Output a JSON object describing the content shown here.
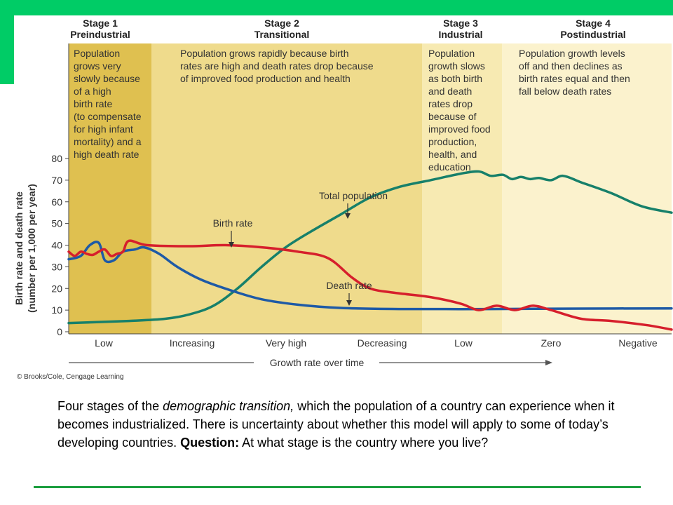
{
  "caption": {
    "part1": "Four stages of the ",
    "emphasis": "demographic transition,",
    "part2": " which the population of a country can experience when it becomes industrialized. There is uncertainty about whether this model will apply to some of today’s developing countries. ",
    "question_label": "Question:",
    "question_text": " At what stage is the country where you live?"
  },
  "copyright": "© Brooks/Cole, Cengage Learning",
  "chart_data": {
    "type": "line",
    "title": "",
    "ylabel_line1": "Birth rate and death rate",
    "ylabel_line2": "(number per 1,000 per year)",
    "xlabel": "Growth rate over time",
    "ylim": [
      0,
      80
    ],
    "yticks": [
      0,
      10,
      20,
      30,
      40,
      50,
      60,
      70,
      80
    ],
    "x_categories": [
      "Low",
      "Increasing",
      "Very high",
      "Decreasing",
      "Low",
      "Zero",
      "Negative"
    ],
    "stages": [
      {
        "name": "Stage 1",
        "subtitle": "Preindustrial",
        "color": "#dfc050",
        "description": [
          "Population",
          "grows very",
          "slowly because",
          "of a high",
          "birth rate",
          "(to compensate",
          "for high infant",
          "mortality) and a",
          "high death rate"
        ]
      },
      {
        "name": "Stage 2",
        "subtitle": "Transitional",
        "color": "#efdb8c",
        "description": [
          "Population grows rapidly because birth",
          "rates are high and death rates drop because",
          "of improved food production and health"
        ]
      },
      {
        "name": "Stage 3",
        "subtitle": "Industrial",
        "color": "#f7eab2",
        "description": [
          "Population",
          "growth slows",
          "as both birth",
          "and death",
          "rates drop",
          "because of",
          "improved food",
          "production,",
          "health, and",
          "education"
        ]
      },
      {
        "name": "Stage 4",
        "subtitle": "Postindustrial",
        "color": "#fbf2cd",
        "description": [
          "Population growth levels",
          "off and then declines as",
          "birth rates equal and then",
          "fall below death rates"
        ]
      }
    ],
    "annotations": [
      {
        "text": "Birth rate"
      },
      {
        "text": "Total population"
      },
      {
        "text": "Death rate"
      }
    ],
    "series": [
      {
        "name": "Birth rate",
        "color": "#d61f2c",
        "points": [
          [
            0,
            37
          ],
          [
            0.1,
            35
          ],
          [
            0.2,
            37
          ],
          [
            0.3,
            36
          ],
          [
            0.4,
            35.5
          ],
          [
            0.5,
            37
          ],
          [
            0.6,
            38
          ],
          [
            0.7,
            35
          ],
          [
            0.8,
            36
          ],
          [
            0.9,
            37
          ],
          [
            1,
            42
          ],
          [
            1.3,
            40
          ],
          [
            2,
            39.5
          ],
          [
            2.6,
            40
          ],
          [
            3.2,
            39
          ],
          [
            3.8,
            37
          ],
          [
            4.3,
            34
          ],
          [
            4.7,
            25
          ],
          [
            5,
            20
          ],
          [
            5.4,
            18
          ],
          [
            6,
            16
          ],
          [
            6.5,
            13
          ],
          [
            6.8,
            10
          ],
          [
            7.1,
            12
          ],
          [
            7.4,
            10
          ],
          [
            7.7,
            12
          ],
          [
            8,
            10
          ],
          [
            8.5,
            6
          ],
          [
            9,
            5
          ],
          [
            9.6,
            3
          ],
          [
            10,
            1
          ]
        ]
      },
      {
        "name": "Death rate",
        "color": "#1e5aa6",
        "points": [
          [
            0,
            33.5
          ],
          [
            0.2,
            35
          ],
          [
            0.35,
            40
          ],
          [
            0.5,
            41
          ],
          [
            0.6,
            33
          ],
          [
            0.75,
            33
          ],
          [
            0.9,
            37
          ],
          [
            1.1,
            38
          ],
          [
            1.25,
            39
          ],
          [
            1.5,
            36
          ],
          [
            1.8,
            30
          ],
          [
            2.2,
            24
          ],
          [
            2.7,
            19
          ],
          [
            3.2,
            15
          ],
          [
            3.8,
            12.5
          ],
          [
            4.5,
            11
          ],
          [
            5.5,
            10.5
          ],
          [
            7,
            10.5
          ],
          [
            8.5,
            10.7
          ],
          [
            10,
            10.8
          ]
        ]
      },
      {
        "name": "Total population",
        "color": "#17806a",
        "points": [
          [
            0,
            4
          ],
          [
            1,
            5
          ],
          [
            1.6,
            6
          ],
          [
            2,
            8
          ],
          [
            2.4,
            12
          ],
          [
            2.8,
            20
          ],
          [
            3.2,
            30
          ],
          [
            3.6,
            39
          ],
          [
            4,
            46
          ],
          [
            4.5,
            54
          ],
          [
            5,
            62
          ],
          [
            5.5,
            67
          ],
          [
            6,
            70
          ],
          [
            6.5,
            73
          ],
          [
            6.8,
            74
          ],
          [
            7,
            72
          ],
          [
            7.2,
            72.5
          ],
          [
            7.35,
            70.5
          ],
          [
            7.5,
            71.5
          ],
          [
            7.65,
            70.5
          ],
          [
            7.8,
            71
          ],
          [
            8,
            70
          ],
          [
            8.2,
            72
          ],
          [
            8.5,
            69
          ],
          [
            9,
            64
          ],
          [
            9.5,
            58
          ],
          [
            10,
            55
          ]
        ]
      }
    ]
  }
}
